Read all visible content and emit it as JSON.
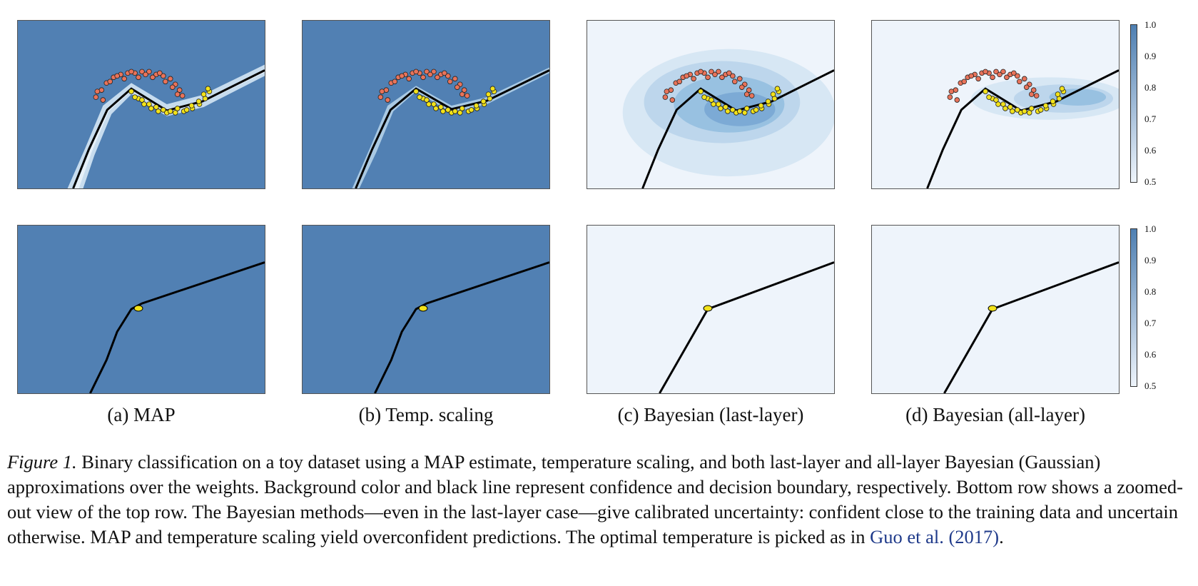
{
  "panels": [
    {
      "id": "a",
      "caption": "(a) MAP"
    },
    {
      "id": "b",
      "caption": "(b) Temp. scaling"
    },
    {
      "id": "c",
      "caption": "(c) Bayesian (last-layer)"
    },
    {
      "id": "d",
      "caption": "(d) Bayesian (all-layer)"
    }
  ],
  "colorbar": {
    "ticks": [
      "1.0",
      "0.9",
      "0.8",
      "0.7",
      "0.6",
      "0.5"
    ],
    "min": 0.5,
    "max": 1.0,
    "colors": {
      "high": "#4e7fb2",
      "low": "#eef4fb"
    }
  },
  "caption": {
    "label": "Figure 1.",
    "text": "Binary classification on a toy dataset using a MAP estimate, temperature scaling, and both last-layer and all-layer Bayesian (Gaussian) approximations over the weights. Background color and black line represent confidence and decision boundary, respectively. Bottom row shows a zoomed-out view of the top row. The Bayesian methods—even in the last-layer case—give calibrated uncertainty: confident close to the training data and uncertain otherwise. MAP and temperature scaling yield overconfident predictions. The optimal temperature is picked as in",
    "cite": "Guo et al. (2017)",
    "end": "."
  },
  "colors": {
    "class0": "#e8735a",
    "class1": "#f2e21a",
    "boundary": "#000000"
  }
}
